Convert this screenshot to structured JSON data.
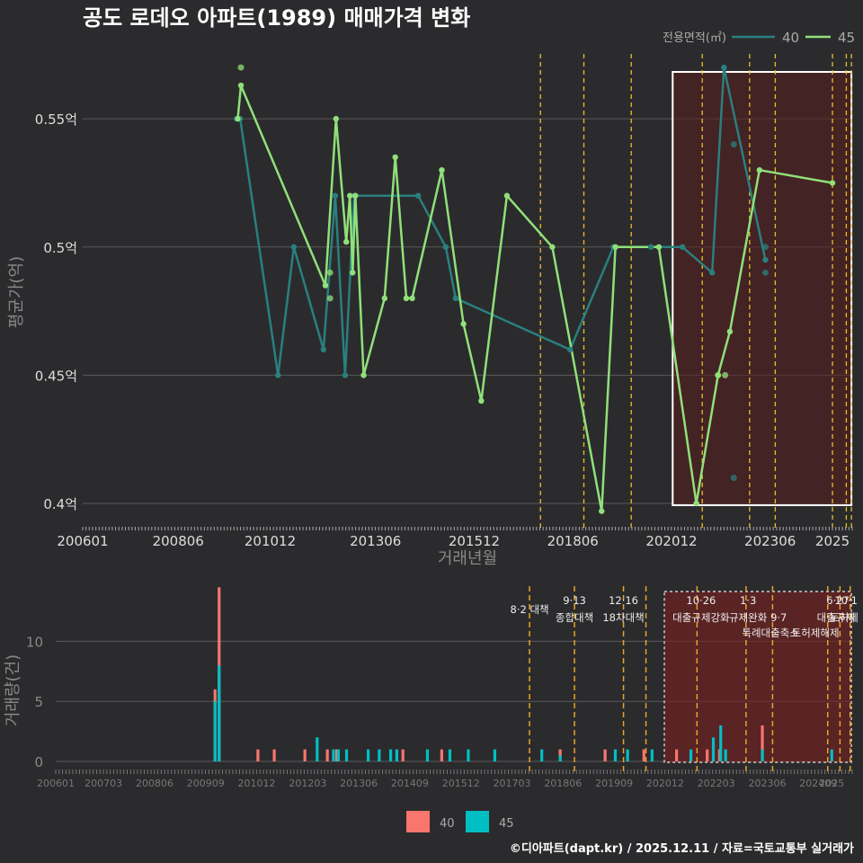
{
  "title": "공도 로데오 아파트(1989) 매매가격 변화",
  "footer": "©디아파트(dapt.kr) / 2025.12.11 / 자료=국토교통부 실거래가",
  "colors": {
    "background": "#2b2b2d",
    "line40": "#2a7f7f",
    "line45": "#90e07a",
    "vol40": "#f8766d",
    "vol45": "#00bfc4",
    "policy": "#e6c02a",
    "highlight": "#5a1e1e",
    "grid": "#5a5a5a",
    "text": "#dddddd"
  },
  "chart_data": [
    {
      "type": "line",
      "title": "공도 로데오 아파트(1989) 매매가격 변화",
      "xlabel": "거래년월",
      "ylabel": "평균가(억)",
      "xlim": [
        2006.0,
        2025.5
      ],
      "ylim": [
        0.393,
        0.583
      ],
      "xticks": [
        {
          "v": 2006.0,
          "label": "200601"
        },
        {
          "v": 2008.42,
          "label": "200806"
        },
        {
          "v": 2010.75,
          "label": "201012"
        },
        {
          "v": 2013.42,
          "label": "201306"
        },
        {
          "v": 2015.92,
          "label": "201512"
        },
        {
          "v": 2018.42,
          "label": "201806"
        },
        {
          "v": 2020.92,
          "label": "202012"
        },
        {
          "v": 2023.42,
          "label": "202306"
        },
        {
          "v": 2025.0,
          "label": "2025"
        }
      ],
      "yticks": [
        {
          "v": 0.4,
          "label": "0.4억"
        },
        {
          "v": 0.45,
          "label": "0.45억"
        },
        {
          "v": 0.5,
          "label": "0.5억"
        },
        {
          "v": 0.55,
          "label": "0.55억"
        }
      ],
      "legend_title": "전용면적(㎡)",
      "series": [
        {
          "name": "40",
          "points": [
            [
              2009.9,
              0.55
            ],
            [
              2009.99,
              0.55
            ],
            [
              2010.95,
              0.45
            ],
            [
              2011.35,
              0.5
            ],
            [
              2012.1,
              0.46
            ],
            [
              2012.4,
              0.52
            ],
            [
              2012.65,
              0.45
            ],
            [
              2012.88,
              0.52
            ],
            [
              2014.5,
              0.52
            ],
            [
              2015.2,
              0.5
            ],
            [
              2015.45,
              0.48
            ],
            [
              2018.35,
              0.46
            ],
            [
              2019.45,
              0.5
            ],
            [
              2020.4,
              0.5
            ],
            [
              2021.2,
              0.5
            ],
            [
              2021.95,
              0.49
            ],
            [
              2022.25,
              0.57
            ],
            [
              2023.3,
              0.495
            ]
          ]
        },
        {
          "name": "45",
          "points": [
            [
              2009.93,
              0.55
            ],
            [
              2010.01,
              0.563
            ],
            [
              2012.15,
              0.485
            ],
            [
              2012.42,
              0.55
            ],
            [
              2012.68,
              0.502
            ],
            [
              2012.77,
              0.52
            ],
            [
              2012.84,
              0.49
            ],
            [
              2012.91,
              0.52
            ],
            [
              2013.12,
              0.45
            ],
            [
              2013.65,
              0.48
            ],
            [
              2013.92,
              0.535
            ],
            [
              2014.2,
              0.48
            ],
            [
              2014.35,
              0.48
            ],
            [
              2015.1,
              0.53
            ],
            [
              2015.65,
              0.47
            ],
            [
              2016.1,
              0.44
            ],
            [
              2016.75,
              0.52
            ],
            [
              2017.9,
              0.5
            ],
            [
              2019.15,
              0.397
            ],
            [
              2019.5,
              0.5
            ],
            [
              2020.6,
              0.5
            ],
            [
              2021.55,
              0.4
            ],
            [
              2022.1,
              0.45
            ],
            [
              2022.4,
              0.467
            ],
            [
              2023.15,
              0.53
            ],
            [
              2025.0,
              0.525
            ]
          ]
        }
      ],
      "extra_points": [
        {
          "series": "45",
          "x": 2010.01,
          "y": 0.57
        },
        {
          "series": "40",
          "x": 2022.5,
          "y": 0.54
        },
        {
          "series": "40",
          "x": 2022.5,
          "y": 0.41
        },
        {
          "series": "40",
          "x": 2023.3,
          "y": 0.49
        },
        {
          "series": "40",
          "x": 2023.3,
          "y": 0.5
        },
        {
          "series": "45",
          "x": 2022.1,
          "y": 0.45
        },
        {
          "series": "45",
          "x": 2022.28,
          "y": 0.45
        },
        {
          "series": "45",
          "x": 2012.27,
          "y": 0.49
        },
        {
          "series": "45",
          "x": 2012.27,
          "y": 0.48
        }
      ],
      "policy_lines": [
        2017.6,
        2018.7,
        2019.9,
        2021.7,
        2022.9,
        2023.55,
        2025.0,
        2025.35,
        2025.48
      ],
      "highlight_range": [
        2020.95,
        2025.48
      ]
    },
    {
      "type": "bar",
      "ylabel": "거래량(건)",
      "xlim": [
        2006.0,
        2025.5
      ],
      "ylim": [
        0,
        14
      ],
      "yticks": [
        {
          "v": 0,
          "label": "0"
        },
        {
          "v": 5,
          "label": "5"
        },
        {
          "v": 10,
          "label": "10"
        }
      ],
      "xticks": [
        {
          "v": 2006.0,
          "label": "200601"
        },
        {
          "v": 2007.17,
          "label": "200703"
        },
        {
          "v": 2008.42,
          "label": "200806"
        },
        {
          "v": 2009.67,
          "label": "200909"
        },
        {
          "v": 2010.92,
          "label": "201012"
        },
        {
          "v": 2012.17,
          "label": "201203"
        },
        {
          "v": 2013.42,
          "label": "201306"
        },
        {
          "v": 2014.67,
          "label": "201409"
        },
        {
          "v": 2015.92,
          "label": "201512"
        },
        {
          "v": 2017.17,
          "label": "201703"
        },
        {
          "v": 2018.42,
          "label": "201806"
        },
        {
          "v": 2019.67,
          "label": "201909"
        },
        {
          "v": 2020.92,
          "label": "202012"
        },
        {
          "v": 2022.17,
          "label": "202203"
        },
        {
          "v": 2023.42,
          "label": "202306"
        },
        {
          "v": 2024.67,
          "label": "202409"
        },
        {
          "v": 2025.0,
          "label": "2025"
        }
      ],
      "series": [
        {
          "name": "40",
          "bars": [
            [
              2009.9,
              6
            ],
            [
              2010.0,
              14.5
            ],
            [
              2010.95,
              1
            ],
            [
              2011.35,
              1
            ],
            [
              2012.1,
              1
            ],
            [
              2012.65,
              1
            ],
            [
              2012.88,
              1
            ],
            [
              2014.5,
              1
            ],
            [
              2015.45,
              1
            ],
            [
              2018.35,
              1
            ],
            [
              2019.45,
              1
            ],
            [
              2020.4,
              1
            ],
            [
              2021.2,
              1
            ],
            [
              2021.95,
              1
            ],
            [
              2022.25,
              1
            ],
            [
              2023.3,
              3
            ]
          ]
        },
        {
          "name": "45",
          "bars": [
            [
              2009.9,
              5
            ],
            [
              2010.0,
              8
            ],
            [
              2012.4,
              2
            ],
            [
              2012.8,
              1
            ],
            [
              2012.92,
              1
            ],
            [
              2013.12,
              1
            ],
            [
              2013.65,
              1
            ],
            [
              2013.92,
              1
            ],
            [
              2014.2,
              1
            ],
            [
              2014.35,
              1
            ],
            [
              2015.1,
              1
            ],
            [
              2015.65,
              1
            ],
            [
              2016.1,
              1
            ],
            [
              2016.75,
              1
            ],
            [
              2017.9,
              1
            ],
            [
              2018.35,
              0.5
            ],
            [
              2019.7,
              1
            ],
            [
              2020.0,
              1
            ],
            [
              2020.6,
              1
            ],
            [
              2021.55,
              1
            ],
            [
              2022.1,
              2
            ],
            [
              2022.28,
              3
            ],
            [
              2022.4,
              1
            ],
            [
              2023.3,
              1
            ],
            [
              2025.0,
              1
            ]
          ]
        }
      ],
      "policy_lines": [
        2017.6,
        2018.7,
        2019.9,
        2020.45,
        2021.7,
        2022.9,
        2023.55,
        2024.9,
        2025.2,
        2025.45
      ],
      "policy_labels": [
        {
          "x": 2017.6,
          "row": 2,
          "text": "8·2 대책"
        },
        {
          "x": 2018.7,
          "row": 1,
          "text": "9·13"
        },
        {
          "x": 2018.7,
          "row": 3,
          "text": "종합대책"
        },
        {
          "x": 2019.9,
          "row": 1,
          "text": "12·16"
        },
        {
          "x": 2019.9,
          "row": 3,
          "text": "18차대책"
        },
        {
          "x": 2021.8,
          "row": 1,
          "text": "10·26"
        },
        {
          "x": 2021.8,
          "row": 3,
          "text": "대출규제강화"
        },
        {
          "x": 2022.95,
          "row": 1,
          "text": "1·3"
        },
        {
          "x": 2022.95,
          "row": 3,
          "text": "규제완화"
        },
        {
          "x": 2023.7,
          "row": 3,
          "text": "9·7"
        },
        {
          "x": 2023.5,
          "row": 4,
          "text": "특례대출축소"
        },
        {
          "x": 2024.6,
          "row": 4,
          "text": "토허제해제"
        },
        {
          "x": 2025.15,
          "row": 1,
          "text": "6·27"
        },
        {
          "x": 2025.35,
          "row": 1,
          "text": "10·1"
        },
        {
          "x": 2025.1,
          "row": 3,
          "text": "대출규제"
        },
        {
          "x": 2025.3,
          "row": 3,
          "text": "토허제"
        }
      ],
      "highlight_range": [
        2020.9,
        2025.48
      ]
    }
  ]
}
